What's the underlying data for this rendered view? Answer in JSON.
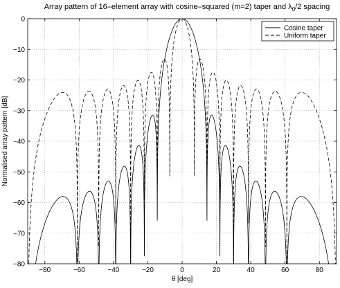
{
  "chart_data": {
    "type": "line",
    "title": {
      "prefix": "Array pattern of 16–element array with cosine–squared (m=2) taper and λ",
      "subscript": "0",
      "suffix": "/2 spacing"
    },
    "xlabel": "θ [deg]",
    "ylabel": "Normalised array pattern [dB]",
    "xlim": [
      -90,
      90
    ],
    "ylim": [
      -80,
      0
    ],
    "xticks": [
      -80,
      -60,
      -40,
      -20,
      0,
      20,
      40,
      60,
      80
    ],
    "yticks": [
      0,
      -10,
      -20,
      -30,
      -40,
      -50,
      -60,
      -70,
      -80
    ],
    "xtick_labels": [
      "−80",
      "−60",
      "−40",
      "−20",
      "0",
      "20",
      "40",
      "60",
      "80"
    ],
    "ytick_labels": [
      "0",
      "−10",
      "−20",
      "−30",
      "−40",
      "−50",
      "−60",
      "−70",
      "−80"
    ],
    "grid": true,
    "legend_position": "top-right",
    "series": [
      {
        "name": "Cosine taper",
        "style": "solid",
        "color": "#000000",
        "elements": 16,
        "spacing_wavelengths": 0.5,
        "taper": "cosine-squared",
        "taper_order": 2
      },
      {
        "name": "Uniform taper",
        "style": "dashed",
        "color": "#000000",
        "elements": 16,
        "spacing_wavelengths": 0.5,
        "taper": "uniform"
      }
    ]
  }
}
